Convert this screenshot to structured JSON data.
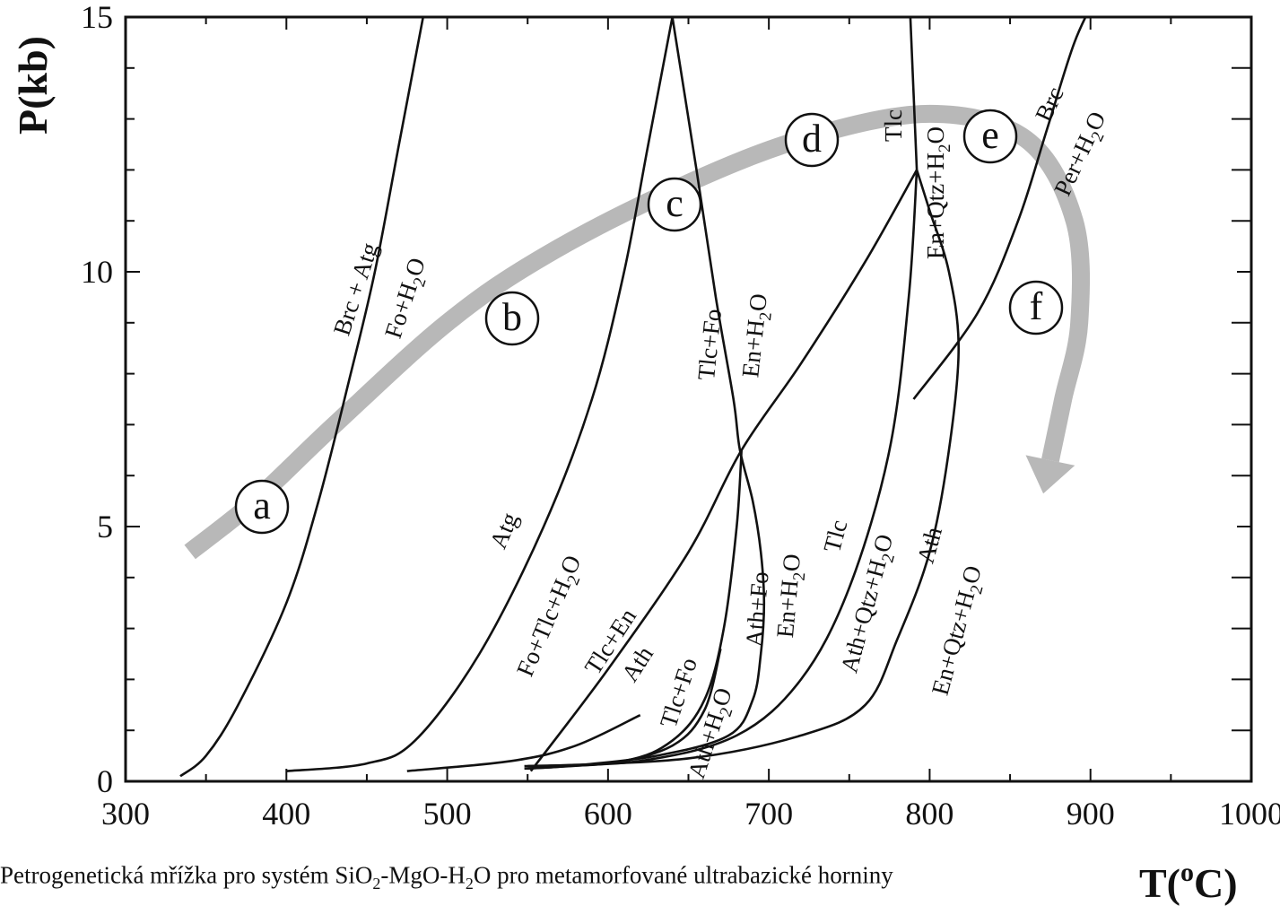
{
  "chart_data": {
    "type": "line",
    "xlabel": "T(",
    "xlabel_sup": "o",
    "xlabel_tail": "C)",
    "ylabel": "P(kb)",
    "xlim": [
      300,
      1000
    ],
    "ylim": [
      0,
      15
    ],
    "x_ticks": [
      "300",
      "400",
      "500",
      "600",
      "700",
      "800",
      "900",
      "1000"
    ],
    "y_ticks": [
      "0",
      "5",
      "10",
      "15"
    ],
    "curves": [
      {
        "name": "Brc + Atg = Fo+H2O",
        "points": [
          [
            334,
            0.1
          ],
          [
            350,
            0.5
          ],
          [
            370,
            1.5
          ],
          [
            400,
            3.5
          ],
          [
            420,
            5.5
          ],
          [
            440,
            8
          ],
          [
            455,
            10
          ],
          [
            470,
            12.5
          ],
          [
            485,
            15
          ]
        ]
      },
      {
        "name": "Atg = Fo+Tlc+H2O",
        "points": [
          [
            400,
            0.2
          ],
          [
            450,
            0.35
          ],
          [
            480,
            0.8
          ],
          [
            520,
            2.5
          ],
          [
            560,
            5
          ],
          [
            590,
            7.5
          ],
          [
            610,
            10
          ],
          [
            625,
            12.5
          ],
          [
            640,
            15
          ]
        ]
      },
      {
        "name": "Tlc+Fo = En+H2O",
        "points": [
          [
            640,
            15
          ],
          [
            655,
            12
          ],
          [
            667,
            9.5
          ],
          [
            678,
            7.5
          ],
          [
            682,
            6.5
          ],
          [
            690,
            5.5
          ],
          [
            695,
            4.5
          ],
          [
            697,
            3.5
          ],
          [
            695,
            2.5
          ],
          [
            690,
            1.6
          ],
          [
            675,
            0.9
          ],
          [
            630,
            0.5
          ],
          [
            575,
            0.3
          ],
          [
            548,
            0.25
          ]
        ]
      },
      {
        "name": "Tlc+En = Ath",
        "points": [
          [
            552,
            0.2
          ],
          [
            600,
            2.2
          ],
          [
            650,
            4.5
          ],
          [
            683,
            6.5
          ],
          [
            720,
            8.2
          ],
          [
            760,
            10.2
          ],
          [
            792,
            12
          ]
        ]
      },
      {
        "name": "Tlc+Fo = Ath+H2O",
        "points": [
          [
            550,
            0.25
          ],
          [
            610,
            0.4
          ],
          [
            640,
            0.8
          ],
          [
            660,
            1.6
          ],
          [
            672,
            3
          ],
          [
            680,
            5
          ],
          [
            683,
            6.5
          ]
        ]
      },
      {
        "name": "Ath+Fo = En+H2O (lower branch)",
        "points": [
          [
            548,
            0.3
          ],
          [
            600,
            0.35
          ],
          [
            640,
            0.7
          ],
          [
            660,
            1.4
          ],
          [
            670,
            2.6
          ]
        ]
      },
      {
        "name": "Tlc = En+Qtz+H2O",
        "points": [
          [
            788,
            15
          ],
          [
            790,
            13.5
          ],
          [
            792,
            12
          ]
        ]
      },
      {
        "name": "Tlc = Ath+Qtz+H2O",
        "points": [
          [
            550,
            0.3
          ],
          [
            620,
            0.4
          ],
          [
            680,
            0.9
          ],
          [
            720,
            2
          ],
          [
            750,
            3.8
          ],
          [
            775,
            6.5
          ],
          [
            787,
            9.5
          ],
          [
            792,
            12
          ]
        ]
      },
      {
        "name": "Ath = En+Qtz+H2O",
        "points": [
          [
            560,
            0.3
          ],
          [
            650,
            0.45
          ],
          [
            720,
            0.9
          ],
          [
            760,
            1.5
          ],
          [
            780,
            2.8
          ],
          [
            800,
            4.5
          ],
          [
            812,
            6.5
          ],
          [
            818,
            8.5
          ],
          [
            812,
            10
          ],
          [
            800,
            11.2
          ],
          [
            792,
            12
          ]
        ]
      },
      {
        "name": "Brc = Per+H2O",
        "points": [
          [
            790,
            7.5
          ],
          [
            830,
            9.2
          ],
          [
            855,
            11
          ],
          [
            873,
            12.8
          ],
          [
            890,
            14.5
          ],
          [
            905,
            15.5
          ]
        ]
      },
      {
        "name": "Tlc+Fo = Ath+H2O (short)",
        "points": [
          [
            475,
            0.2
          ],
          [
            540,
            0.4
          ],
          [
            580,
            0.7
          ],
          [
            620,
            1.3
          ]
        ]
      }
    ],
    "path_arrow": {
      "points": [
        [
          340,
          4.5
        ],
        [
          380,
          5.5
        ],
        [
          430,
          7
        ],
        [
          500,
          9
        ],
        [
          560,
          10.3
        ],
        [
          640,
          11.6
        ],
        [
          720,
          12.6
        ],
        [
          800,
          13.1
        ],
        [
          860,
          12.6
        ],
        [
          890,
          11
        ],
        [
          893,
          9
        ],
        [
          883,
          7.5
        ],
        [
          875,
          6.3
        ]
      ]
    },
    "field_labels": [
      {
        "text": "Brc + Atg"
      },
      {
        "text": "Fo+H",
        "sub": "2",
        "tail": "O"
      },
      {
        "text": "Atg"
      },
      {
        "text": "Fo+Tlc+H",
        "sub": "2",
        "tail": "O"
      },
      {
        "text": "Tlc+Fo"
      },
      {
        "text": "En+H",
        "sub": "2",
        "tail": "O"
      },
      {
        "text": "Tlc"
      },
      {
        "text": "En+Qtz+H",
        "sub": "2",
        "tail": "O"
      },
      {
        "text": "Brc"
      },
      {
        "text": "Per+H",
        "sub": "2",
        "tail": "O"
      },
      {
        "text": "Tlc+En"
      },
      {
        "text": "Ath"
      },
      {
        "text": "Tlc+Fo"
      },
      {
        "text": "Ath+H",
        "sub": "2",
        "tail": "O"
      },
      {
        "text": "Ath+Fo"
      },
      {
        "text": "En+H",
        "sub": "2",
        "tail": "O"
      },
      {
        "text": "Tlc"
      },
      {
        "text": "Ath+Qtz+H",
        "sub": "2",
        "tail": "O"
      },
      {
        "text": "Ath"
      },
      {
        "text": "En+Qtz+H",
        "sub": "2",
        "tail": "O"
      }
    ],
    "path_stages": [
      "a",
      "b",
      "c",
      "d",
      "e",
      "f"
    ],
    "colors": {
      "line": "#111111",
      "arrow": "#b8b8b8",
      "background": "#ffffff"
    }
  },
  "caption": {
    "part1": "Petrogenetická mřížka pro systém SiO",
    "sub1": "2",
    "part2": "-MgO-H",
    "sub2": "2",
    "part3": "O pro metamorfované ultrabazické horniny"
  }
}
